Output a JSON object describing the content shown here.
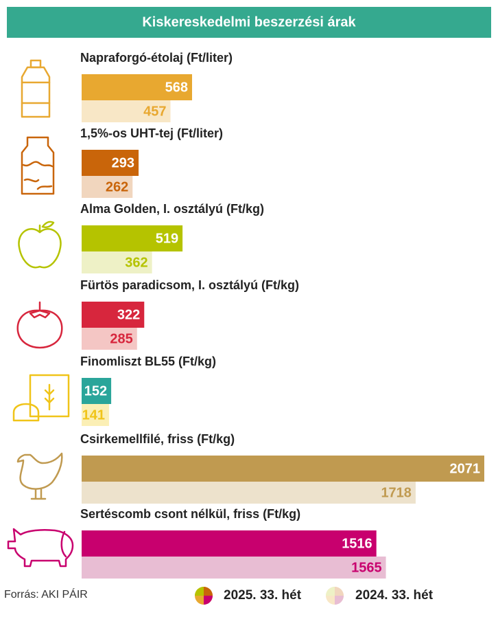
{
  "chart_data": {
    "type": "bar",
    "orientation": "horizontal",
    "title": "Kiskereskedelmi beszerzési árak",
    "categories": [
      "Napraforgó-étolaj (Ft/liter)",
      "1,5%-os UHT-tej (Ft/liter)",
      "Alma Golden, I. osztályú (Ft/kg)",
      "Fürtös paradicsom, I. osztályú (Ft/kg)",
      "Finomliszt BL55 (Ft/kg)",
      "Csirkemellfilé, friss (Ft/kg)",
      "Sertéscomb csont nélkül, friss (Ft/kg)"
    ],
    "series": [
      {
        "name": "2025. 33. hét",
        "values": [
          568,
          293,
          519,
          322,
          152,
          2071,
          1516
        ],
        "colors": [
          "#e8a830",
          "#c9650a",
          "#b5c300",
          "#d7263d",
          "#2aa59a",
          "#c09a50",
          "#c8006e"
        ],
        "label_colors": [
          "#ffffff",
          "#ffffff",
          "#ffffff",
          "#ffffff",
          "#ffffff",
          "#ffffff",
          "#ffffff"
        ]
      },
      {
        "name": "2024. 33. hét",
        "values": [
          457,
          262,
          362,
          285,
          141,
          1718,
          1565
        ],
        "colors": [
          "#f8e7c6",
          "#f1d6be",
          "#eef1c6",
          "#f4c6c4",
          "#fbefb5",
          "#ede2cc",
          "#e8bdd3"
        ],
        "label_colors": [
          "#e8a830",
          "#c9650a",
          "#b5c300",
          "#d7263d",
          "#f0c419",
          "#c09a50",
          "#c8006e"
        ]
      }
    ],
    "source": "Forrás: AKI PÁIR"
  }
}
